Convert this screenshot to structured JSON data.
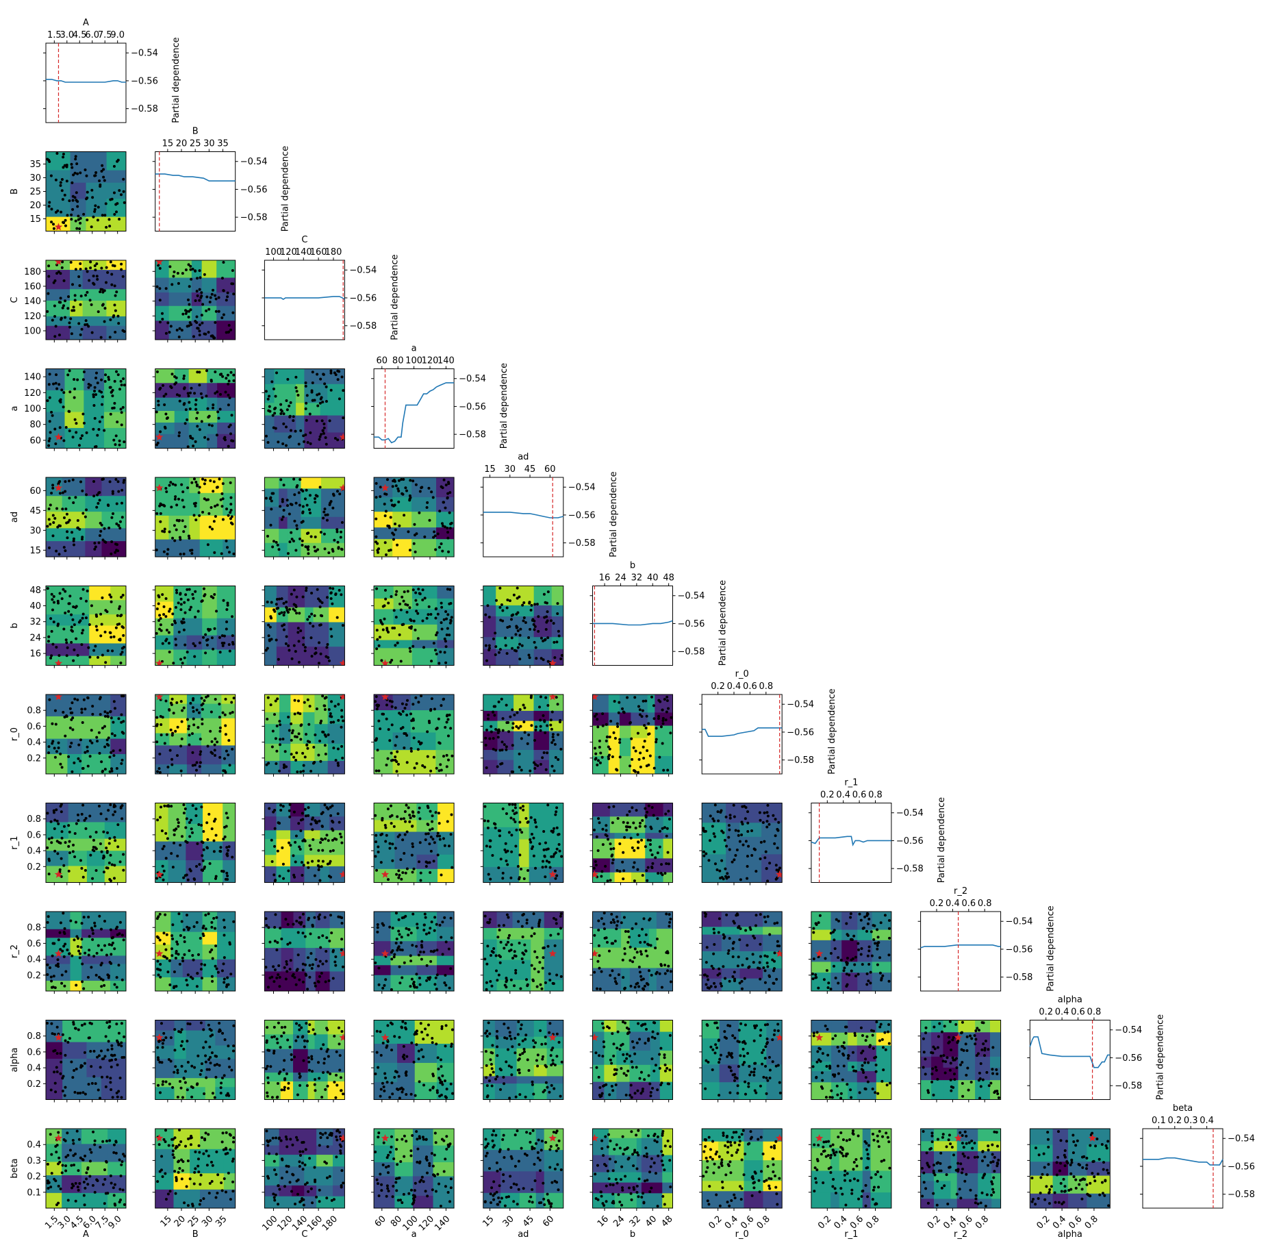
{
  "colors": {
    "line": "#1f77b4",
    "marker": "#d62728",
    "points": "#000000",
    "viridis": [
      "#440154",
      "#482878",
      "#3e4989",
      "#31688e",
      "#26828e",
      "#1f9e89",
      "#35b779",
      "#6ece58",
      "#b5de2b",
      "#fde725"
    ]
  },
  "chart_data": {
    "type": "heatmap",
    "title": "",
    "pd_ylabel": "Partial dependence",
    "pd_yticks": [
      -0.54,
      -0.56,
      -0.58
    ],
    "pd_ylim": [
      -0.59,
      -0.533
    ],
    "variables": [
      {
        "name": "A",
        "range": [
          0.5,
          10.0
        ],
        "ticks": [
          1.5,
          3.0,
          4.5,
          6.0,
          7.5,
          9.0
        ],
        "labels": [
          "1.5",
          "3.0",
          "4.5",
          "6.0",
          "7.5",
          "9.0"
        ],
        "best": 2.0,
        "pd": {
          "x": [
            0.5,
            1.2,
            1.8,
            2.3,
            2.8,
            3.5,
            4.5,
            6.0,
            7.5,
            8.5,
            9.0,
            9.5,
            10.0
          ],
          "y": [
            -0.559,
            -0.559,
            -0.56,
            -0.56,
            -0.561,
            -0.561,
            -0.561,
            -0.561,
            -0.561,
            -0.56,
            -0.56,
            -0.561,
            -0.561
          ]
        }
      },
      {
        "name": "B",
        "range": [
          10.5,
          39.5
        ],
        "ticks": [
          15,
          20,
          25,
          30,
          35
        ],
        "labels": [
          "15",
          "20",
          "25",
          "30",
          "35"
        ],
        "best": 12.0,
        "pd": {
          "x": [
            10.5,
            14,
            17,
            19,
            21,
            24,
            28,
            30,
            32,
            36,
            39.5
          ],
          "y": [
            -0.549,
            -0.549,
            -0.55,
            -0.55,
            -0.551,
            -0.551,
            -0.552,
            -0.554,
            -0.554,
            -0.554,
            -0.554
          ]
        }
      },
      {
        "name": "C",
        "range": [
          88,
          195
        ],
        "ticks": [
          100,
          120,
          140,
          160,
          180
        ],
        "labels": [
          "100",
          "120",
          "140",
          "160",
          "180"
        ],
        "best": 193,
        "pd": {
          "x": [
            88,
            100,
            110,
            113,
            116,
            122,
            140,
            160,
            180,
            188,
            192,
            195
          ],
          "y": [
            -0.56,
            -0.56,
            -0.56,
            -0.561,
            -0.56,
            -0.56,
            -0.56,
            -0.56,
            -0.559,
            -0.559,
            -0.56,
            -0.561
          ]
        }
      },
      {
        "name": "a",
        "range": [
          50,
          150
        ],
        "ticks": [
          60,
          80,
          100,
          120,
          140
        ],
        "labels": [
          "60",
          "80",
          "100",
          "120",
          "140"
        ],
        "best": 64,
        "pd": {
          "x": [
            50,
            56,
            60,
            64,
            68,
            72,
            76,
            80,
            84,
            86,
            90,
            96,
            100,
            104,
            108,
            112,
            116,
            120,
            124,
            128,
            132,
            136,
            140,
            146,
            150
          ],
          "y": [
            -0.582,
            -0.582,
            -0.584,
            -0.584,
            -0.583,
            -0.586,
            -0.585,
            -0.582,
            -0.582,
            -0.572,
            -0.559,
            -0.559,
            -0.559,
            -0.559,
            -0.555,
            -0.551,
            -0.551,
            -0.549,
            -0.548,
            -0.546,
            -0.545,
            -0.544,
            -0.543,
            -0.543,
            -0.543
          ]
        }
      },
      {
        "name": "ad",
        "range": [
          10,
          70
        ],
        "ticks": [
          15,
          30,
          45,
          60
        ],
        "labels": [
          "15",
          "30",
          "45",
          "60"
        ],
        "best": 62,
        "pd": {
          "x": [
            10,
            20,
            30,
            40,
            45,
            50,
            55,
            60,
            63,
            66,
            70
          ],
          "y": [
            -0.558,
            -0.558,
            -0.558,
            -0.559,
            -0.559,
            -0.56,
            -0.561,
            -0.562,
            -0.562,
            -0.562,
            -0.561
          ]
        }
      },
      {
        "name": "b",
        "range": [
          10,
          50
        ],
        "ticks": [
          16,
          24,
          32,
          40,
          48
        ],
        "labels": [
          "16",
          "24",
          "32",
          "40",
          "48"
        ],
        "best": 11,
        "pd": {
          "x": [
            10,
            20,
            28,
            34,
            40,
            44,
            48,
            50
          ],
          "y": [
            -0.56,
            -0.56,
            -0.561,
            -0.561,
            -0.56,
            -0.56,
            -0.559,
            -0.558
          ]
        }
      },
      {
        "name": "r_0",
        "range": [
          0.0,
          1.0
        ],
        "ticks": [
          0.2,
          0.4,
          0.6,
          0.8
        ],
        "labels": [
          "0.2",
          "0.4",
          "0.6",
          "0.8"
        ],
        "best": 0.97,
        "pd": {
          "x": [
            0.0,
            0.04,
            0.08,
            0.25,
            0.4,
            0.45,
            0.65,
            0.7,
            0.9,
            1.0
          ],
          "y": [
            -0.558,
            -0.558,
            -0.563,
            -0.563,
            -0.562,
            -0.561,
            -0.559,
            -0.557,
            -0.557,
            -0.557
          ]
        }
      },
      {
        "name": "r_1",
        "range": [
          0.0,
          1.0
        ],
        "ticks": [
          0.2,
          0.4,
          0.6,
          0.8
        ],
        "labels": [
          "0.2",
          "0.4",
          "0.6",
          "0.8"
        ],
        "best": 0.1,
        "pd": {
          "x": [
            0.0,
            0.05,
            0.1,
            0.12,
            0.3,
            0.45,
            0.5,
            0.52,
            0.55,
            0.6,
            0.65,
            0.7,
            0.8,
            1.0
          ],
          "y": [
            -0.561,
            -0.562,
            -0.558,
            -0.558,
            -0.558,
            -0.557,
            -0.557,
            -0.563,
            -0.56,
            -0.56,
            -0.561,
            -0.56,
            -0.56,
            -0.56
          ]
        }
      },
      {
        "name": "r_2",
        "range": [
          0.0,
          1.0
        ],
        "ticks": [
          0.2,
          0.4,
          0.6,
          0.8
        ],
        "labels": [
          "0.2",
          "0.4",
          "0.6",
          "0.8"
        ],
        "best": 0.47,
        "pd": {
          "x": [
            0.0,
            0.05,
            0.1,
            0.3,
            0.45,
            0.5,
            0.7,
            0.9,
            0.97,
            1.0
          ],
          "y": [
            -0.559,
            -0.558,
            -0.558,
            -0.558,
            -0.557,
            -0.557,
            -0.557,
            -0.557,
            -0.558,
            -0.558
          ]
        }
      },
      {
        "name": "alpha",
        "range": [
          0.0,
          1.0
        ],
        "ticks": [
          0.2,
          0.4,
          0.6,
          0.8
        ],
        "labels": [
          "0.2",
          "0.4",
          "0.6",
          "0.8"
        ],
        "best": 0.78,
        "pd": {
          "x": [
            0.0,
            0.03,
            0.05,
            0.1,
            0.15,
            0.25,
            0.4,
            0.6,
            0.75,
            0.8,
            0.85,
            0.9,
            0.93,
            0.97,
            1.0
          ],
          "y": [
            -0.552,
            -0.547,
            -0.545,
            -0.545,
            -0.557,
            -0.558,
            -0.559,
            -0.559,
            -0.559,
            -0.567,
            -0.567,
            -0.563,
            -0.563,
            -0.558,
            -0.558
          ]
        }
      },
      {
        "name": "beta",
        "range": [
          0.0,
          0.5
        ],
        "ticks": [
          0.1,
          0.2,
          0.3,
          0.4
        ],
        "labels": [
          "0.1",
          "0.2",
          "0.3",
          "0.4"
        ],
        "best": 0.44,
        "pd": {
          "x": [
            0.0,
            0.1,
            0.15,
            0.2,
            0.25,
            0.3,
            0.35,
            0.4,
            0.42,
            0.48,
            0.5
          ],
          "y": [
            -0.555,
            -0.555,
            -0.554,
            -0.554,
            -0.555,
            -0.556,
            -0.557,
            -0.557,
            -0.559,
            -0.559,
            -0.555
          ]
        }
      }
    ]
  }
}
